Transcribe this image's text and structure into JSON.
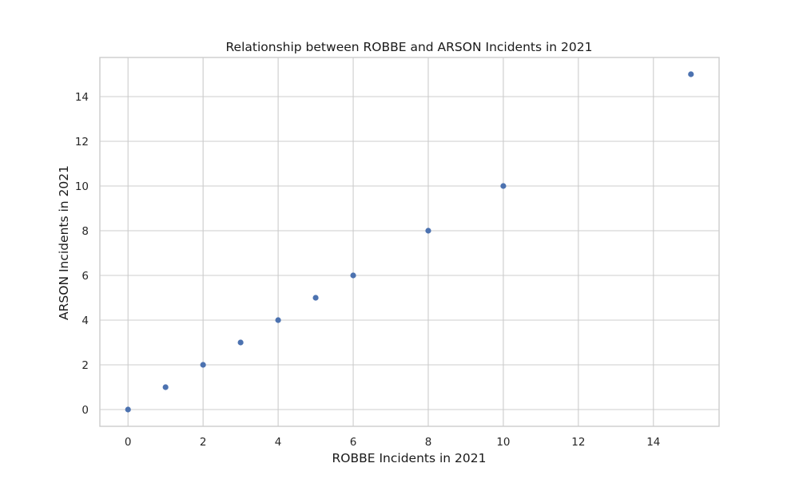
{
  "chart_data": {
    "type": "scatter",
    "title": "Relationship between ROBBE and ARSON Incidents in 2021",
    "xlabel": "ROBBE Incidents in 2021",
    "ylabel": "ARSON Incidents in 2021",
    "xlim": [
      -0.75,
      15.75
    ],
    "ylim": [
      -0.75,
      15.75
    ],
    "xticks": [
      0,
      2,
      4,
      6,
      8,
      10,
      12,
      14
    ],
    "yticks": [
      0,
      2,
      4,
      6,
      8,
      10,
      12,
      14
    ],
    "grid": true,
    "point_color": "#4c72b0",
    "points": [
      {
        "x": 0,
        "y": 0
      },
      {
        "x": 1,
        "y": 1
      },
      {
        "x": 2,
        "y": 2
      },
      {
        "x": 3,
        "y": 3
      },
      {
        "x": 4,
        "y": 4
      },
      {
        "x": 5,
        "y": 5
      },
      {
        "x": 6,
        "y": 6
      },
      {
        "x": 8,
        "y": 8
      },
      {
        "x": 10,
        "y": 10
      },
      {
        "x": 15,
        "y": 15
      }
    ]
  }
}
